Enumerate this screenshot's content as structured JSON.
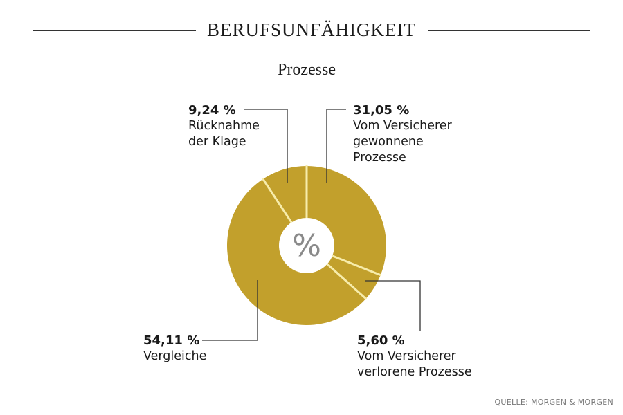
{
  "header": {
    "title": "BERUFSUNFÄHIGKEIT",
    "subtitle": "Prozesse"
  },
  "chart_data": {
    "type": "pie",
    "donut": true,
    "center_label": "%",
    "colors": {
      "slice": "#c2a02c",
      "separator": "#f7ecab",
      "center_text": "#8a8a8a"
    },
    "slices": [
      {
        "label_value": "31,05 %",
        "label": "Vom Versicherer gewonnene Prozesse",
        "value": 31.05
      },
      {
        "label_value": "5,60 %",
        "label": "Vom Versicherer verlorene Prozesse",
        "value": 5.6
      },
      {
        "label_value": "54,11 %",
        "label": "Vergleiche",
        "value": 54.11
      },
      {
        "label_value": "9,24 %",
        "label": "Rücknahme der Klage",
        "value": 9.24
      }
    ]
  },
  "labels": {
    "s0": {
      "value": "31,05 %",
      "l1": "Vom Versicherer",
      "l2": "gewonnene",
      "l3": "Prozesse"
    },
    "s1": {
      "value": "5,60 %",
      "l1": "Vom Versicherer",
      "l2": "verlorene Prozesse"
    },
    "s2": {
      "value": "54,11 %",
      "l1": "Vergleiche"
    },
    "s3": {
      "value": "9,24 %",
      "l1": "Rücknahme",
      "l2": "der Klage"
    }
  },
  "footer": {
    "source": "QUELLE: MORGEN & MORGEN"
  }
}
